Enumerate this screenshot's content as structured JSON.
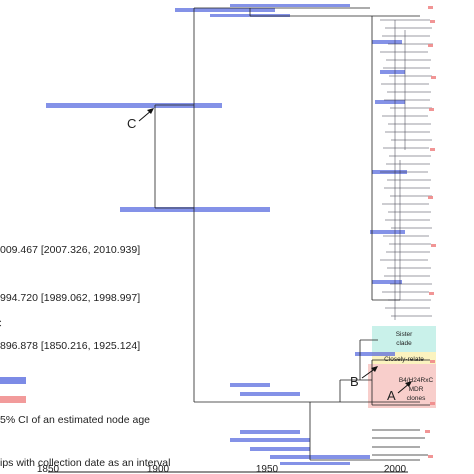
{
  "node_markers": {
    "c": "C",
    "b": "B",
    "a": "A"
  },
  "legend": {
    "node_c_date": "009.467 [2007.326, 2010.939]",
    "node_b_date": "994.720 [1989.062, 1998.997]",
    "node_prefix_glyph": "C",
    "node_a_date": "896.878 [1850.216, 1925.124]",
    "ci_bar": "5% CI of an estimated node age",
    "tip_interval": "ips with collection date as an interval"
  },
  "clade_boxes": {
    "sister": [
      "Sister",
      "clade"
    ],
    "closely": "Closely-relate",
    "mdr": [
      "B4/H24RxC",
      "MDR",
      "clones"
    ]
  },
  "colors": {
    "ci_bar": "#5b6ee0",
    "tip_interval": "#f08a8a",
    "sister_box": "#bfeee6",
    "closely_box": "#fbf2b8",
    "mdr_box": "#f7c6c2",
    "branch": "#222222"
  },
  "axis": {
    "ticks": [
      "1850",
      "1900",
      "1950",
      "2000"
    ]
  }
}
